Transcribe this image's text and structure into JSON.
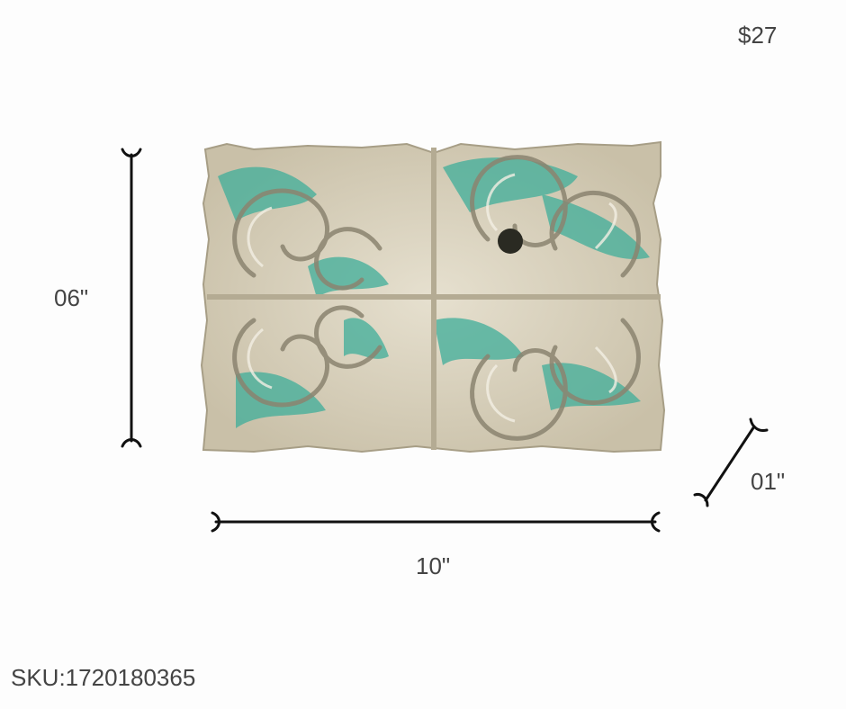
{
  "product": {
    "price": "$27",
    "sku": "SKU:1720180365",
    "dimensions": {
      "height": "06\"",
      "width": "10\"",
      "depth": "01\""
    },
    "colors": {
      "text": "#444444",
      "plaster": "#ded7c4",
      "turquoise": "#3fae9a"
    }
  }
}
